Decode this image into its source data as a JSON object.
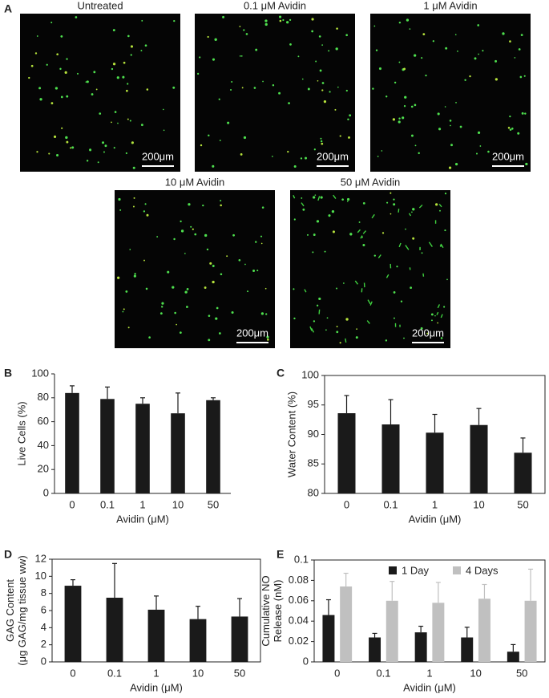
{
  "panel_labels": [
    "A",
    "B",
    "C",
    "D",
    "E"
  ],
  "images": [
    {
      "title": "Untreated",
      "scale_bar": "200μm"
    },
    {
      "title": "0.1 μM Avidin",
      "scale_bar": "200μm"
    },
    {
      "title": "1 μM Avidin",
      "scale_bar": "200μm"
    },
    {
      "title": "10 μM Avidin",
      "scale_bar": "200μm"
    },
    {
      "title": "50 μM Avidin",
      "scale_bar": "200μm"
    }
  ],
  "chart_data": [
    {
      "type": "bar",
      "xlabel": "Avidin (μM)",
      "ylabel": [
        "Live Cells (%)"
      ],
      "categories": [
        "0",
        "0.1",
        "1",
        "10",
        "50"
      ],
      "series": [
        {
          "color": "#1a1a1a",
          "values": [
            84,
            79,
            75,
            67,
            78
          ],
          "errors": [
            6,
            10,
            5,
            17,
            2
          ]
        }
      ],
      "ylim": [
        0,
        100
      ],
      "yticks": [
        0,
        20,
        40,
        60,
        80,
        100
      ],
      "frame": false
    },
    {
      "type": "bar",
      "xlabel": "Avidin (μM)",
      "ylabel": [
        "Water Content (%)"
      ],
      "categories": [
        "0",
        "0.1",
        "1",
        "10",
        "50"
      ],
      "series": [
        {
          "color": "#1a1a1a",
          "values": [
            93.6,
            91.7,
            90.3,
            91.6,
            86.9
          ],
          "errors": [
            3,
            4.2,
            3.1,
            2.8,
            2.5
          ]
        }
      ],
      "ylim": [
        80,
        100
      ],
      "yticks": [
        80,
        85,
        90,
        95,
        100
      ],
      "frame": true
    },
    {
      "type": "bar",
      "xlabel": "Avidin (μM)",
      "ylabel": [
        "GAG Content",
        "(μg GAG/mg tissue ww)"
      ],
      "categories": [
        "0",
        "0.1",
        "1",
        "10",
        "50"
      ],
      "series": [
        {
          "color": "#1a1a1a",
          "values": [
            8.9,
            7.5,
            6.1,
            5.0,
            5.3
          ],
          "errors": [
            0.7,
            4.0,
            1.6,
            1.5,
            2.1
          ]
        }
      ],
      "ylim": [
        0,
        12
      ],
      "yticks": [
        0,
        2,
        4,
        6,
        8,
        10,
        12
      ],
      "frame": true
    },
    {
      "type": "bar",
      "xlabel": "Avidin (μM)",
      "ylabel": [
        "Cumulative NO",
        "Release (nM)"
      ],
      "categories": [
        "0",
        "0.1",
        "1",
        "10",
        "50"
      ],
      "series": [
        {
          "name": "1 Day",
          "color": "#1a1a1a",
          "values": [
            0.046,
            0.024,
            0.029,
            0.024,
            0.01
          ],
          "errors": [
            0.015,
            0.004,
            0.006,
            0.01,
            0.007
          ]
        },
        {
          "name": "4 Days",
          "color": "#c0c0c0",
          "values": [
            0.074,
            0.06,
            0.058,
            0.062,
            0.06
          ],
          "errors": [
            0.013,
            0.019,
            0.02,
            0.014,
            0.031
          ]
        }
      ],
      "ylim": [
        0,
        0.1
      ],
      "yticks": [
        0,
        0.02,
        0.04,
        0.06,
        0.08,
        0.1
      ],
      "frame": true,
      "legend": "top-right"
    }
  ]
}
